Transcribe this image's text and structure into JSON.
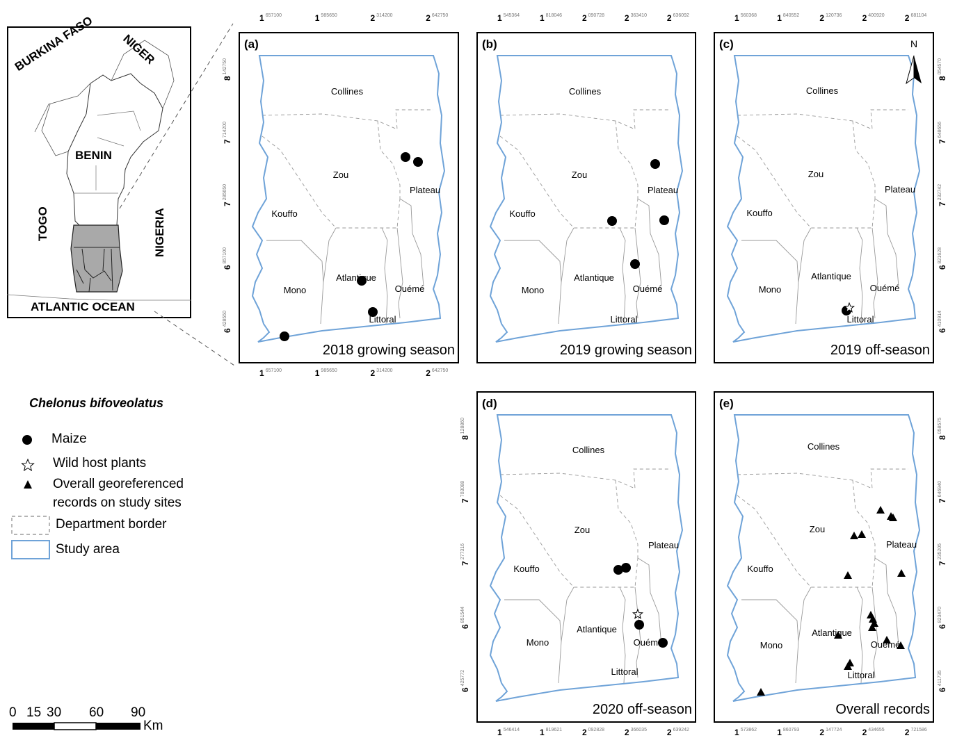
{
  "inset": {
    "countries": [
      "BURKINA FASO",
      "NIGER",
      "BENIN",
      "TOGO",
      "NIGERIA"
    ],
    "ocean": "ATLANTIC OCEAN"
  },
  "legend": {
    "title": "Chelonus bifoveolatus",
    "items": [
      {
        "symbol": "circle",
        "label": "Maize"
      },
      {
        "symbol": "star",
        "label": "Wild host plants"
      },
      {
        "symbol": "triangle",
        "label_line1": "Overall georeferenced",
        "label_line2": "records on study sites"
      },
      {
        "symbol": "dashed-box",
        "label": "Department border"
      },
      {
        "symbol": "blue-box",
        "label": "Study area"
      }
    ]
  },
  "scale_bar": {
    "ticks": [
      "0",
      "15",
      "30",
      "60",
      "90"
    ],
    "unit": "Km"
  },
  "departments": [
    "Collines",
    "Zou",
    "Plateau",
    "Kouffo",
    "Mono",
    "Atlantique",
    "Ouémé",
    "Littoral"
  ],
  "north_arrow": "N",
  "panels": [
    {
      "id": "a",
      "letter": "(a)",
      "caption": "2018 growing season",
      "top_ticks": [
        [
          "1",
          "657100"
        ],
        [
          "1",
          "985650"
        ],
        [
          "2",
          "314200"
        ],
        [
          "2",
          "642750"
        ]
      ],
      "bottom_ticks": [
        [
          "1",
          "657100"
        ],
        [
          "1",
          "985650"
        ],
        [
          "2",
          "314200"
        ],
        [
          "2",
          "642750"
        ]
      ],
      "left_ticks": [
        [
          "8",
          "142750"
        ],
        [
          "7",
          "714200"
        ],
        [
          "7",
          "285650"
        ],
        [
          "6",
          "857100"
        ],
        [
          "6",
          "428550"
        ]
      ],
      "right_ticks": [],
      "points": [
        {
          "type": "circle",
          "site": "Plateau-north-1"
        },
        {
          "type": "circle",
          "site": "Plateau-north-2"
        },
        {
          "type": "circle",
          "site": "Atlantique"
        },
        {
          "type": "circle",
          "site": "Littoral"
        },
        {
          "type": "circle",
          "site": "Mono-coast"
        }
      ]
    },
    {
      "id": "b",
      "letter": "(b)",
      "caption": "2019 growing season",
      "top_ticks": [
        [
          "1",
          "545364"
        ],
        [
          "1",
          "818046"
        ],
        [
          "2",
          "090728"
        ],
        [
          "2",
          "363410"
        ],
        [
          "2",
          "636092"
        ]
      ],
      "bottom_ticks": [],
      "left_ticks": [],
      "right_ticks": [],
      "points": [
        {
          "type": "circle",
          "site": "Plateau-north"
        },
        {
          "type": "circle",
          "site": "Zou-south"
        },
        {
          "type": "circle",
          "site": "Plateau-south"
        },
        {
          "type": "circle",
          "site": "Ouémé-north"
        }
      ]
    },
    {
      "id": "c",
      "letter": "(c)",
      "caption": "2019 off-season",
      "top_ticks": [
        [
          "1",
          "560368"
        ],
        [
          "1",
          "840552"
        ],
        [
          "2",
          "120736"
        ],
        [
          "2",
          "400920"
        ],
        [
          "2",
          "681104"
        ]
      ],
      "bottom_ticks": [],
      "left_ticks": [],
      "right_ticks": [
        [
          "8",
          "054570"
        ],
        [
          "7",
          "648656"
        ],
        [
          "7",
          "232742"
        ],
        [
          "6",
          "821628"
        ],
        [
          "6",
          "410914"
        ]
      ],
      "points": [
        {
          "type": "circle",
          "site": "Littoral"
        },
        {
          "type": "star",
          "site": "Littoral"
        }
      ]
    },
    {
      "id": "d",
      "letter": "(d)",
      "caption": "2020 off-season",
      "top_ticks": [],
      "bottom_ticks": [
        [
          "1",
          "546414"
        ],
        [
          "1",
          "819621"
        ],
        [
          "2",
          "092828"
        ],
        [
          "2",
          "366035"
        ],
        [
          "2",
          "639242"
        ]
      ],
      "left_ticks": [
        [
          "8",
          "128860"
        ],
        [
          "7",
          "703088"
        ],
        [
          "7",
          "277316"
        ],
        [
          "6",
          "851544"
        ],
        [
          "6",
          "425772"
        ]
      ],
      "right_ticks": [],
      "points": [
        {
          "type": "circle",
          "site": "Zou-east-1"
        },
        {
          "type": "circle",
          "site": "Zou-east-2"
        },
        {
          "type": "star",
          "site": "Ouémé-north"
        },
        {
          "type": "circle",
          "site": "Ouémé-north"
        },
        {
          "type": "circle",
          "site": "Ouémé-south"
        }
      ]
    },
    {
      "id": "e",
      "letter": "(e)",
      "caption": "Overall records",
      "top_ticks": [],
      "bottom_ticks": [
        [
          "1",
          "573862"
        ],
        [
          "1",
          "860793"
        ],
        [
          "2",
          "147724"
        ],
        [
          "2",
          "434655"
        ],
        [
          "2",
          "721586"
        ]
      ],
      "left_ticks": [],
      "right_ticks": [
        [
          "8",
          "058575"
        ],
        [
          "7",
          "646940"
        ],
        [
          "7",
          "235205"
        ],
        [
          "6",
          "823470"
        ],
        [
          "6",
          "411735"
        ]
      ],
      "points": [
        {
          "type": "triangle"
        },
        {
          "type": "triangle"
        },
        {
          "type": "triangle"
        },
        {
          "type": "triangle"
        },
        {
          "type": "triangle"
        },
        {
          "type": "triangle"
        },
        {
          "type": "triangle"
        },
        {
          "type": "triangle"
        },
        {
          "type": "triangle"
        },
        {
          "type": "triangle"
        },
        {
          "type": "triangle"
        },
        {
          "type": "triangle"
        },
        {
          "type": "triangle"
        },
        {
          "type": "triangle"
        },
        {
          "type": "triangle"
        },
        {
          "type": "triangle"
        },
        {
          "type": "triangle"
        }
      ]
    }
  ]
}
